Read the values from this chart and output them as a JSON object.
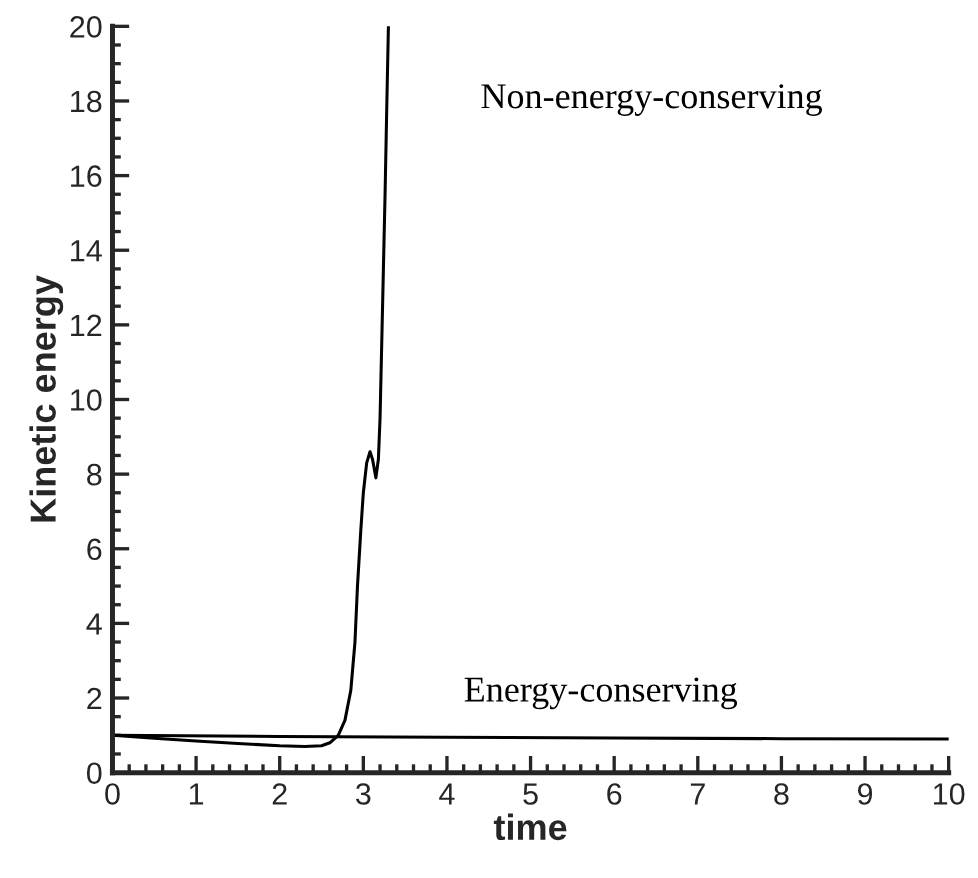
{
  "chart_data": {
    "type": "line",
    "xlabel": "time",
    "ylabel": "Kinetic energy",
    "xlim": [
      0,
      10
    ],
    "ylim": [
      0,
      20
    ],
    "xticks": [
      0,
      1,
      2,
      3,
      4,
      5,
      6,
      7,
      8,
      9,
      10
    ],
    "yticks": [
      0,
      2,
      4,
      6,
      8,
      10,
      12,
      14,
      16,
      18,
      20
    ],
    "grid": false,
    "legend": false,
    "marker": "none",
    "line_style": "solid",
    "series": [
      {
        "name": "Non-energy-conserving",
        "color": "#000000",
        "x": [
          0,
          0.5,
          1.0,
          1.5,
          2.0,
          2.3,
          2.5,
          2.6,
          2.7,
          2.78,
          2.85,
          2.9,
          2.93,
          2.97,
          3.0,
          3.04,
          3.08,
          3.11,
          3.15,
          3.18,
          3.2,
          3.22,
          3.24,
          3.26,
          3.28,
          3.3
        ],
        "values": [
          1.0,
          0.92,
          0.85,
          0.78,
          0.72,
          0.7,
          0.72,
          0.8,
          1.0,
          1.4,
          2.2,
          3.5,
          5.0,
          6.5,
          7.5,
          8.3,
          8.6,
          8.4,
          7.9,
          8.4,
          9.5,
          11.5,
          13.5,
          15.5,
          17.8,
          20.0
        ]
      },
      {
        "name": "Energy-conserving",
        "color": "#000000",
        "x": [
          0,
          2,
          4,
          6,
          8,
          10
        ],
        "values": [
          1.0,
          0.97,
          0.95,
          0.93,
          0.91,
          0.9
        ]
      }
    ]
  }
}
